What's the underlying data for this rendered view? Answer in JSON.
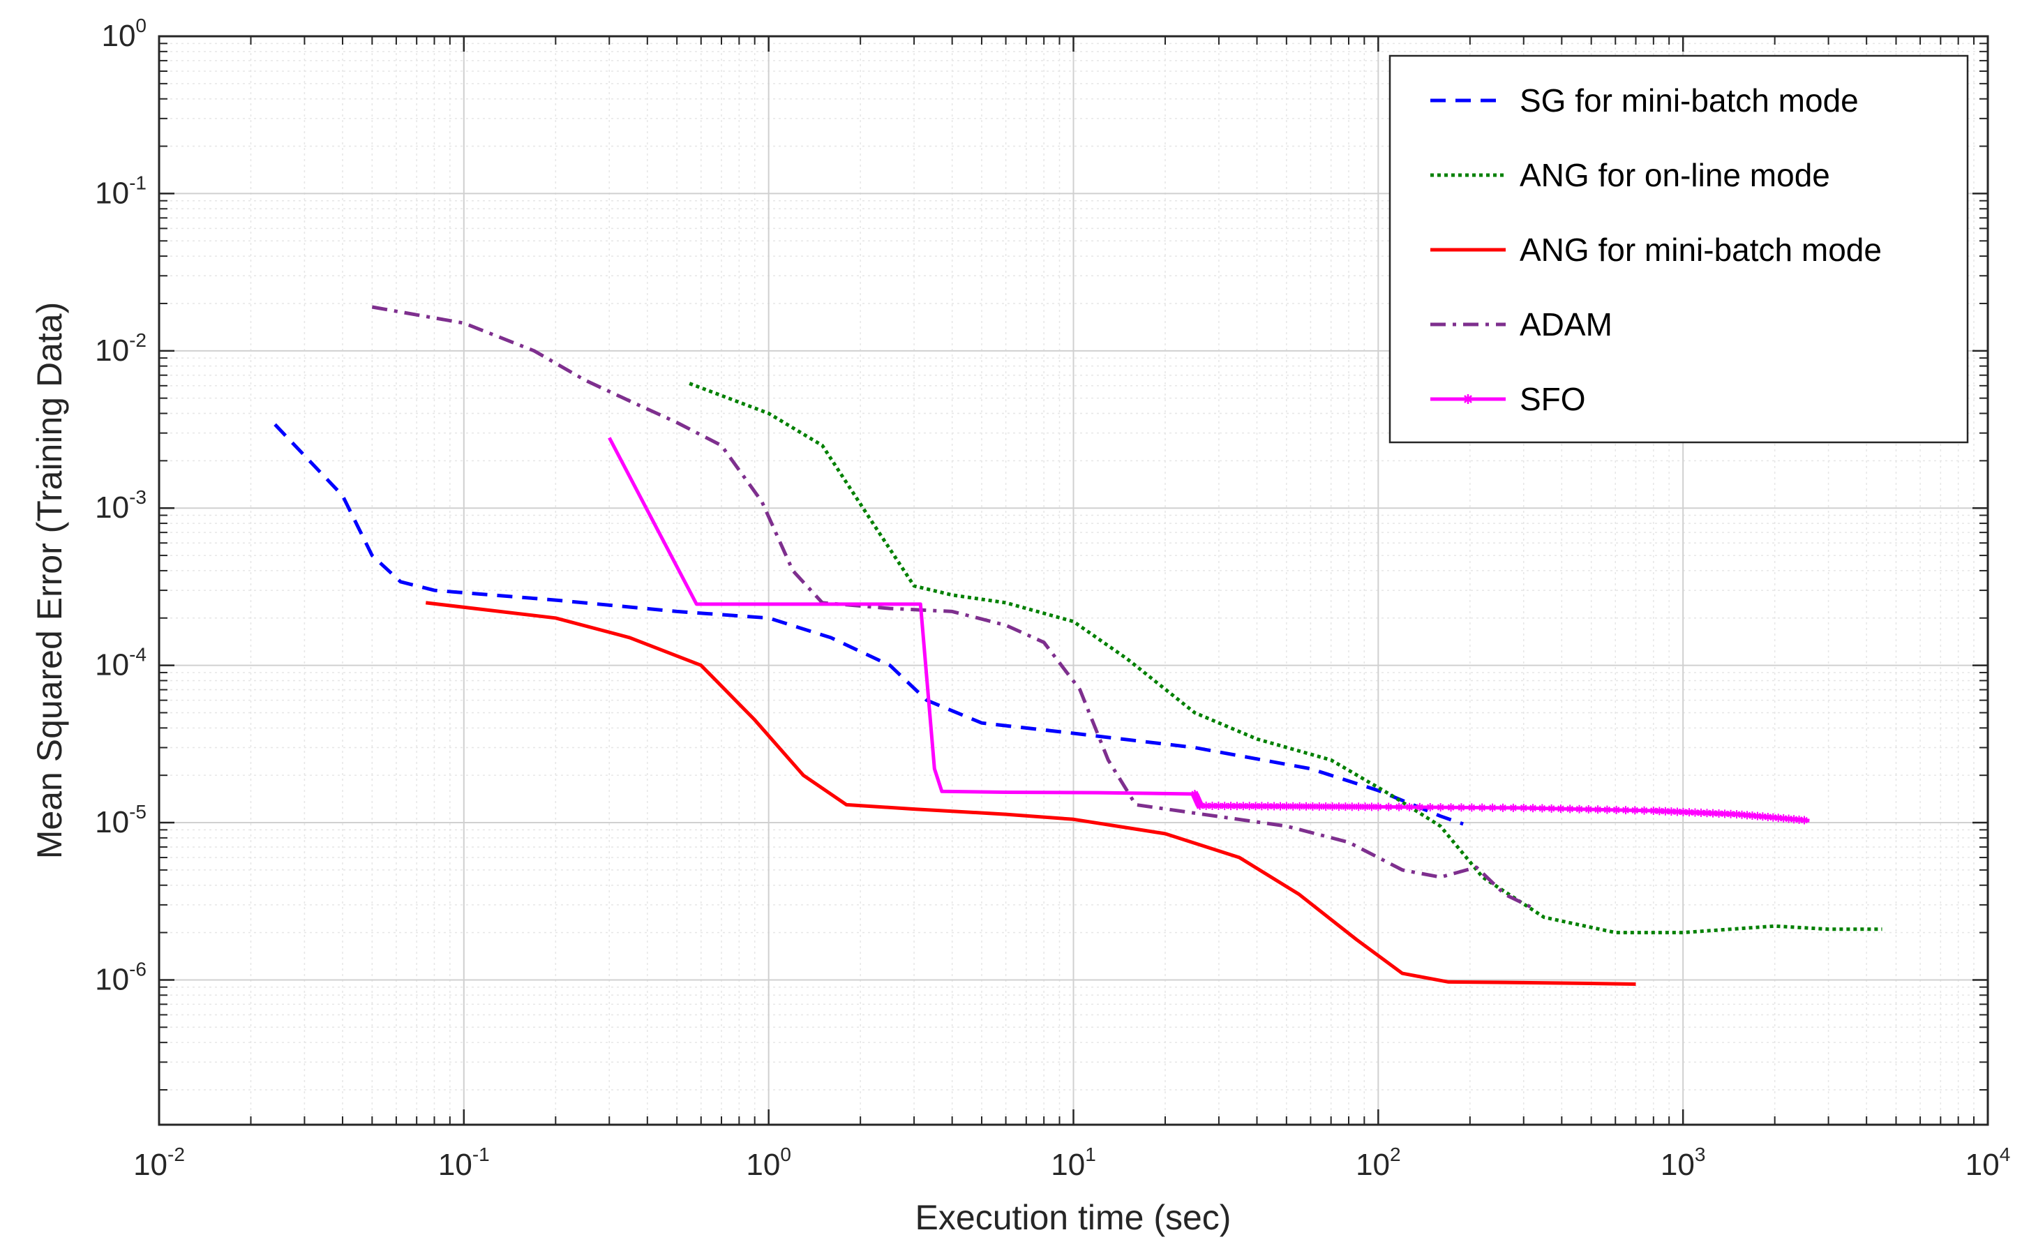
{
  "chart_data": {
    "type": "line",
    "title": "",
    "xlabel": "Execution time (sec)",
    "ylabel": "Mean Squared Error (Training Data)",
    "xscale": "log",
    "yscale": "log",
    "xlim": [
      0.01,
      10000
    ],
    "ylim": [
      1.2e-07,
      1
    ],
    "grid": true,
    "minor_grid": true,
    "legend_position": "top-right",
    "x_ticks": [
      {
        "base": "10",
        "exp": "-2",
        "value": 0.01
      },
      {
        "base": "10",
        "exp": "-1",
        "value": 0.1
      },
      {
        "base": "10",
        "exp": "0",
        "value": 1
      },
      {
        "base": "10",
        "exp": "1",
        "value": 10
      },
      {
        "base": "10",
        "exp": "2",
        "value": 100
      },
      {
        "base": "10",
        "exp": "3",
        "value": 1000
      },
      {
        "base": "10",
        "exp": "4",
        "value": 10000
      }
    ],
    "y_ticks": [
      {
        "base": "10",
        "exp": "0",
        "value": 1
      },
      {
        "base": "10",
        "exp": "-1",
        "value": 0.1
      },
      {
        "base": "10",
        "exp": "-2",
        "value": 0.01
      },
      {
        "base": "10",
        "exp": "-3",
        "value": 0.001
      },
      {
        "base": "10",
        "exp": "-4",
        "value": 0.0001
      },
      {
        "base": "10",
        "exp": "-5",
        "value": 1e-05
      },
      {
        "base": "10",
        "exp": "-6",
        "value": 1e-06
      }
    ],
    "series": [
      {
        "name": "SG for mini-batch mode",
        "color": "#0000ff",
        "style": "dashed",
        "points": [
          [
            0.024,
            0.0034
          ],
          [
            0.04,
            0.0012
          ],
          [
            0.05,
            0.0005
          ],
          [
            0.062,
            0.00034
          ],
          [
            0.08,
            0.0003
          ],
          [
            0.2,
            0.00026
          ],
          [
            0.5,
            0.00022
          ],
          [
            1.0,
            0.0002
          ],
          [
            1.6,
            0.00015
          ],
          [
            2.5,
            0.0001
          ],
          [
            3.3,
            6e-05
          ],
          [
            5,
            4.3e-05
          ],
          [
            10,
            3.7e-05
          ],
          [
            25,
            3e-05
          ],
          [
            60,
            2.2e-05
          ],
          [
            100,
            1.6e-05
          ],
          [
            160,
            1.1e-05
          ],
          [
            190,
            9.8e-06
          ]
        ]
      },
      {
        "name": "ANG for on-line mode",
        "color": "#008000",
        "style": "dotted",
        "points": [
          [
            0.55,
            0.0062
          ],
          [
            1.0,
            0.004
          ],
          [
            1.5,
            0.0025
          ],
          [
            2.2,
            0.0008
          ],
          [
            3.0,
            0.00032
          ],
          [
            4,
            0.00028
          ],
          [
            6,
            0.00025
          ],
          [
            10,
            0.00019
          ],
          [
            15,
            0.00011
          ],
          [
            25,
            5e-05
          ],
          [
            40,
            3.4e-05
          ],
          [
            70,
            2.5e-05
          ],
          [
            110,
            1.5e-05
          ],
          [
            160,
            9.5e-06
          ],
          [
            220,
            4.5e-06
          ],
          [
            350,
            2.5e-06
          ],
          [
            600,
            2e-06
          ],
          [
            1000,
            2e-06
          ],
          [
            2000,
            2.2e-06
          ],
          [
            3000,
            2.1e-06
          ],
          [
            4500,
            2.1e-06
          ]
        ]
      },
      {
        "name": "ANG for mini-batch mode",
        "color": "#ff0000",
        "style": "solid",
        "points": [
          [
            0.075,
            0.00025
          ],
          [
            0.2,
            0.0002
          ],
          [
            0.35,
            0.00015
          ],
          [
            0.6,
            0.0001
          ],
          [
            0.9,
            4.5e-05
          ],
          [
            1.3,
            2e-05
          ],
          [
            1.8,
            1.3e-05
          ],
          [
            3,
            1.22e-05
          ],
          [
            6,
            1.13e-05
          ],
          [
            10,
            1.05e-05
          ],
          [
            20,
            8.5e-06
          ],
          [
            35,
            6e-06
          ],
          [
            55,
            3.5e-06
          ],
          [
            85,
            1.8e-06
          ],
          [
            120,
            1.1e-06
          ],
          [
            170,
            9.7e-07
          ],
          [
            300,
            9.6e-07
          ],
          [
            500,
            9.5e-07
          ],
          [
            700,
            9.4e-07
          ]
        ]
      },
      {
        "name": "ADAM",
        "color": "#7e2f8e",
        "style": "dashdot",
        "points": [
          [
            0.05,
            0.019
          ],
          [
            0.1,
            0.015
          ],
          [
            0.17,
            0.01
          ],
          [
            0.25,
            0.0065
          ],
          [
            0.35,
            0.0048
          ],
          [
            0.5,
            0.0035
          ],
          [
            0.7,
            0.0025
          ],
          [
            0.95,
            0.0011
          ],
          [
            1.2,
            0.0004
          ],
          [
            1.5,
            0.00025
          ],
          [
            2.5,
            0.00023
          ],
          [
            4,
            0.00022
          ],
          [
            6,
            0.00018
          ],
          [
            8,
            0.00014
          ],
          [
            10.5,
            7e-05
          ],
          [
            13,
            2.5e-05
          ],
          [
            16,
            1.3e-05
          ],
          [
            25,
            1.15e-05
          ],
          [
            50,
            9.5e-06
          ],
          [
            80,
            7.5e-06
          ],
          [
            120,
            5e-06
          ],
          [
            160,
            4.5e-06
          ],
          [
            210,
            5.2e-06
          ],
          [
            260,
            3.5e-06
          ],
          [
            330,
            2.8e-06
          ]
        ]
      },
      {
        "name": "SFO",
        "color": "#ff00ff",
        "style": "solid-star",
        "points": [
          [
            0.3,
            0.0028
          ],
          [
            0.58,
            0.000245
          ],
          [
            1.0,
            0.000245
          ],
          [
            2.0,
            0.000245
          ],
          [
            3.15,
            0.000245
          ],
          [
            3.5,
            2.2e-05
          ],
          [
            3.7,
            1.58e-05
          ],
          [
            6,
            1.56e-05
          ],
          [
            12,
            1.55e-05
          ],
          [
            25,
            1.52e-05
          ],
          [
            26,
            1.28e-05
          ],
          [
            50,
            1.27e-05
          ],
          [
            100,
            1.26e-05
          ],
          [
            300,
            1.24e-05
          ],
          [
            800,
            1.19e-05
          ],
          [
            1500,
            1.13e-05
          ],
          [
            2600,
            1.03e-05
          ]
        ]
      }
    ]
  }
}
